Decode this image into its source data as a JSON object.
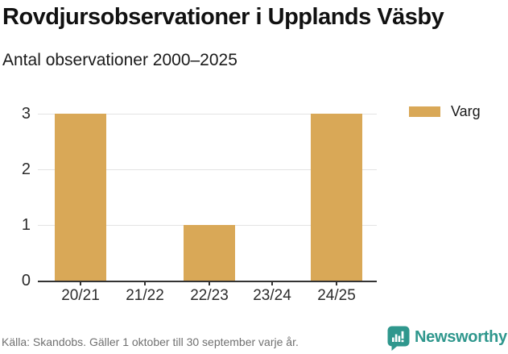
{
  "header": {
    "title": "Rovdjursobservationer i Upplands Väsby",
    "subtitle": "Antal observationer 2000–2025"
  },
  "legend": {
    "items": [
      {
        "label": "Varg",
        "color": "#D9A857"
      }
    ]
  },
  "chart_data": {
    "type": "bar",
    "title": "Rovdjursobservationer i Upplands Väsby",
    "subtitle": "Antal observationer 2000–2025",
    "categories": [
      "20/21",
      "21/22",
      "22/23",
      "23/24",
      "24/25"
    ],
    "series": [
      {
        "name": "Varg",
        "values": [
          3,
          0,
          1,
          0,
          3
        ],
        "color": "#D9A857"
      }
    ],
    "xlabel": "",
    "ylabel": "",
    "ylim": [
      0,
      3
    ],
    "yticks": [
      0,
      1,
      2,
      3
    ],
    "grid": true,
    "legend_position": "top-right"
  },
  "footer": {
    "source": "Källa: Skandobs. Gäller 1 oktober till 30 september varje år.",
    "brand": "Newsworthy",
    "brand_color": "#2F978D"
  }
}
